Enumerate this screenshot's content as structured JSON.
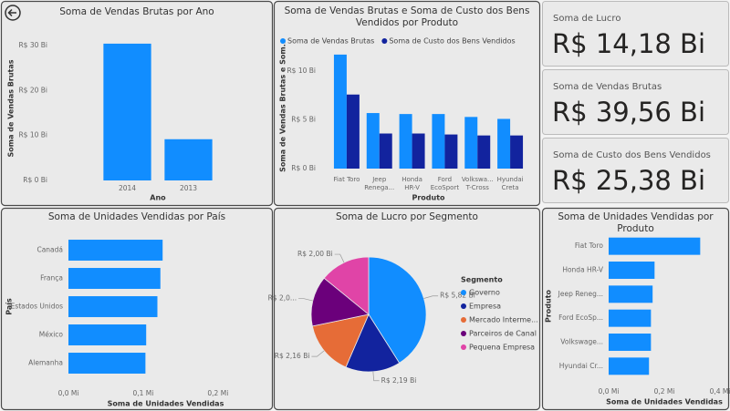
{
  "chart_data": [
    {
      "type": "bar",
      "title": "Soma de Vendas Brutas por Ano",
      "x_label": "Ano",
      "y_label": "Soma de Vendas Brutas",
      "categories": [
        "2014",
        "2013"
      ],
      "values": [
        30.4,
        9.16
      ],
      "color": "#118DFF",
      "ylim": [
        0,
        32
      ],
      "yticks": [
        {
          "value": 0,
          "label": "R$ 0 Bi"
        },
        {
          "value": 10,
          "label": "R$ 10 Bi"
        },
        {
          "value": 20,
          "label": "R$ 20 Bi"
        },
        {
          "value": 30,
          "label": "R$ 30 Bi"
        }
      ],
      "grid": false
    },
    {
      "type": "bar",
      "title": "Soma de Vendas Brutas e Soma de Custo dos Bens Vendidos por Produto",
      "x_label": "Produto",
      "y_label": "Soma de Vendas Brutas e Som...",
      "categories": [
        "Fiat Toro",
        "Jeep\nRenega...",
        "Honda\nHR-V",
        "Ford\nEcoSport",
        "Volkswa...\nT-Cross",
        "Hyundai\nCreta"
      ],
      "series": [
        {
          "name": "Soma de Vendas Brutas",
          "color": "#118DFF",
          "values": [
            11.7,
            5.7,
            5.6,
            5.6,
            5.3,
            5.1
          ]
        },
        {
          "name": "Soma de Custo dos Bens Vendidos",
          "color": "#12239E",
          "values": [
            7.6,
            3.6,
            3.6,
            3.5,
            3.4,
            3.4
          ]
        }
      ],
      "ylim": [
        0,
        13
      ],
      "yticks": [
        {
          "value": 0,
          "label": "R$ 0 Bi"
        },
        {
          "value": 5,
          "label": "R$ 5 Bi"
        },
        {
          "value": 10,
          "label": "R$ 10 Bi"
        }
      ],
      "grid": false
    },
    {
      "type": "barh",
      "title": "Soma de Unidades Vendidas por País",
      "x_label": "Soma de Unidades Vendidas",
      "y_label": "País",
      "categories": [
        "Canadá",
        "França",
        "Estados Unidos",
        "México",
        "Alemanha"
      ],
      "values": [
        0.126,
        0.123,
        0.119,
        0.104,
        0.103
      ],
      "color": "#118DFF",
      "xlim": [
        0,
        0.26
      ],
      "xticks": [
        {
          "value": 0,
          "label": "0,0 Mi"
        },
        {
          "value": 0.1,
          "label": "0,1 Mi"
        },
        {
          "value": 0.2,
          "label": "0,2 Mi"
        }
      ],
      "grid": false
    },
    {
      "type": "pie",
      "title": "Soma de Lucro por Segmento",
      "legend_title": "Segmento",
      "categories": [
        "Governo",
        "Empresa",
        "Mercado Interme...",
        "Parceiros de Canal",
        "Pequena Empresa"
      ],
      "values": [
        5.82,
        2.19,
        2.16,
        2.01,
        2.0
      ],
      "value_labels": [
        "R$ 5,82 Bi",
        "R$ 2,19 Bi",
        "R$ 2,16 Bi",
        "R$ 2,0...",
        "R$ 2,00 Bi"
      ],
      "colors": [
        "#118DFF",
        "#12239E",
        "#E66C37",
        "#6B007B",
        "#E044A7"
      ]
    },
    {
      "type": "barh",
      "title": "Soma de Unidades Vendidas por Produto",
      "x_label": "Soma de Unidades Vendidas",
      "y_label": "Produto",
      "categories": [
        "Fiat Toro",
        "Honda HR-V",
        "Jeep Reneg...",
        "Ford EcoSp...",
        "Volkswage...",
        "Hyundai Cr..."
      ],
      "values": [
        0.329,
        0.165,
        0.158,
        0.152,
        0.152,
        0.145
      ],
      "color": "#118DFF",
      "xlim": [
        0,
        0.4
      ],
      "xticks": [
        {
          "value": 0,
          "label": "0,0 Mi"
        },
        {
          "value": 0.2,
          "label": "0,2 Mi"
        },
        {
          "value": 0.4,
          "label": "0,4 Mi"
        }
      ],
      "grid": false
    }
  ],
  "cards": [
    {
      "label": "Soma de Lucro",
      "value": "R$ 14,18 Bi"
    },
    {
      "label": "Soma de Vendas Brutas",
      "value": "R$ 39,56 Bi"
    },
    {
      "label": "Soma de Custo dos Bens Vendidos",
      "value": "R$ 25,38 Bi"
    }
  ]
}
